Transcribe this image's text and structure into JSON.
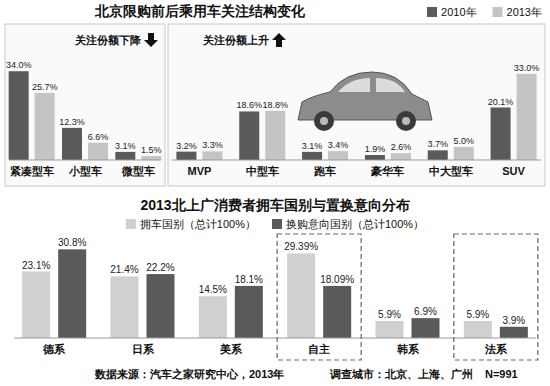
{
  "chart_data": [
    {
      "type": "bar",
      "title": "北京限购前后乘用车关注结构变化",
      "categories": [
        "紧凑型车",
        "小型车",
        "微型车",
        "MVP",
        "中型车",
        "跑车",
        "豪华车",
        "中大型车",
        "SUV"
      ],
      "series": [
        {
          "name": "2010年",
          "color": "#5a5a5a",
          "values": [
            34.0,
            12.3,
            3.1,
            3.2,
            18.6,
            3.1,
            1.9,
            3.7,
            20.1
          ],
          "value_labels": [
            "34.0%",
            "12.3%",
            "3.1%",
            "3.2%",
            "18.6%",
            "3.1%",
            "1.9%",
            "3.7%",
            "20.1%"
          ]
        },
        {
          "name": "2013年",
          "color": "#c4c4c4",
          "values": [
            25.7,
            6.6,
            1.5,
            3.3,
            18.8,
            3.4,
            2.6,
            5.0,
            33.0
          ],
          "value_labels": [
            "25.7%",
            "6.6%",
            "1.5%",
            "3.3%",
            "18.8%",
            "3.4%",
            "2.6%",
            "5.0%",
            "33.0%"
          ]
        }
      ],
      "annotations": [
        {
          "text": "关注份额下降",
          "span": [
            0,
            2
          ]
        },
        {
          "text": "关注份额上升",
          "span": [
            3,
            8
          ]
        }
      ],
      "ylim": [
        0,
        36
      ],
      "data_labels": true,
      "tick_labels": "x",
      "legend": "top-right"
    },
    {
      "type": "bar",
      "title": "2013北上广消费者拥车国别与置换意向分布",
      "categories": [
        "德系",
        "日系",
        "美系",
        "自主",
        "韩系",
        "法系"
      ],
      "series": [
        {
          "name": "拥车国别（总计100%）",
          "color": "#d0d0d0",
          "values": [
            23.1,
            21.4,
            14.5,
            29.39,
            5.9,
            5.9
          ],
          "value_labels": [
            "23.1%",
            "21.4%",
            "14.5%",
            "29.39%",
            "5.9%",
            "5.9%"
          ]
        },
        {
          "name": "换购意向国别（总计100%）",
          "color": "#5a5a5a",
          "values": [
            30.8,
            22.2,
            18.1,
            18.09,
            6.9,
            3.9
          ],
          "value_labels": [
            "30.8%",
            "22.2%",
            "18.1%",
            "18.09%",
            "6.9%",
            "3.9%"
          ]
        }
      ],
      "annotations": [
        "数据来源：汽车之家研究中心，2013年",
        "调查城市：北京、上海、广州",
        "N=991"
      ],
      "ylim": [
        0,
        33
      ],
      "data_labels": true,
      "tick_labels": "x",
      "legend": "top"
    }
  ]
}
